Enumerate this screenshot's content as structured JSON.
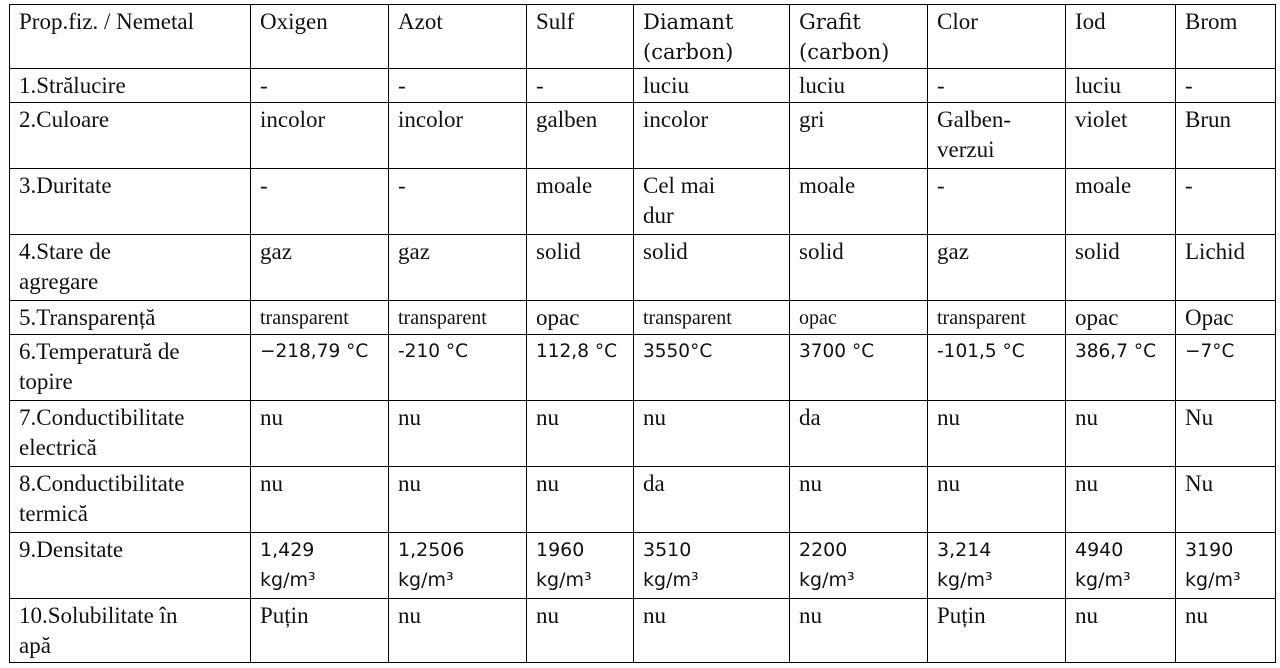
{
  "header": [
    "Prop.fiz. / Nemetal",
    "Oxigen",
    "Azot",
    "Sulf",
    "Diamant (carbon)",
    "Grafit (carbon)",
    "Clor",
    "Iod",
    "Brom"
  ],
  "rows": [
    {
      "label": "1.Strălucire",
      "cells": [
        "-",
        "-",
        "-",
        "luciu",
        "luciu",
        "-",
        "luciu",
        "-"
      ]
    },
    {
      "label": "2.Culoare",
      "cells": [
        "incolor",
        "incolor",
        "galben",
        "incolor",
        "gri",
        "Galben-verzui",
        "violet",
        "Brun"
      ]
    },
    {
      "label": "3.Duritate",
      "cells": [
        "-",
        "-",
        "moale",
        "Cel mai dur",
        "moale",
        "-",
        "moale",
        "-"
      ]
    },
    {
      "label": "4.Stare de agregare",
      "cells": [
        "gaz",
        "gaz",
        "solid",
        "solid",
        "solid",
        "gaz",
        "solid",
        "Lichid"
      ]
    },
    {
      "label": "5.Transparență",
      "cells": [
        "transparent",
        "transparent",
        "opac",
        "transparent",
        "opac",
        "transparent",
        "opac",
        "Opac"
      ]
    },
    {
      "label": "6.Temperatură de topire",
      "cells": [
        "−218,79 °C",
        "-210 °C",
        "112,8 °C",
        "3550°C",
        "3700 °C",
        "-101,5 °C",
        "386,7 °C",
        "−7°C"
      ]
    },
    {
      "label": "7.Conductibilitate electrică",
      "cells": [
        "nu",
        "nu",
        "nu",
        "nu",
        "da",
        "nu",
        "nu",
        "Nu"
      ]
    },
    {
      "label": "8.Conductibilitate termică",
      "cells": [
        "nu",
        "nu",
        "nu",
        "da",
        "nu",
        "nu",
        "nu",
        "Nu"
      ]
    },
    {
      "label": "9.Densitate",
      "cells": [
        "1,429 kg/m³",
        "1,2506 kg/m³",
        "1960 kg/m³",
        "3510 kg/m³",
        "2200 kg/m³",
        "3,214 kg/m³",
        "4940 kg/m³",
        "3190 kg/m³"
      ]
    },
    {
      "label": "10.Solubilitate în apă",
      "cells": [
        "Puțin",
        "nu",
        "nu",
        "nu",
        "nu",
        "Puțin",
        "nu",
        "nu"
      ]
    }
  ]
}
